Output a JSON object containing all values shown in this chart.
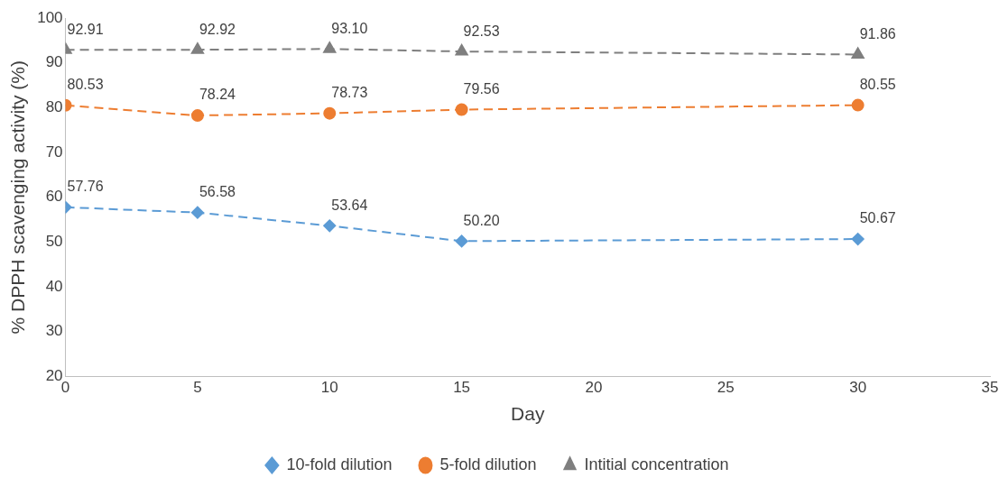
{
  "chart_data": {
    "type": "line",
    "xlabel": "Day",
    "ylabel": "% DPPH scavenging activity (%)",
    "x": [
      0,
      5,
      10,
      15,
      30
    ],
    "xlim": [
      0,
      35
    ],
    "xticks": [
      0,
      5,
      10,
      15,
      20,
      25,
      30,
      35
    ],
    "ylim": [
      20,
      100
    ],
    "yticks": [
      20,
      30,
      40,
      50,
      60,
      70,
      80,
      90,
      100
    ],
    "grid": false,
    "legend": "bottom",
    "line_style": "dashed",
    "series": [
      {
        "name": "10-fold dilution",
        "color": "#5b9bd5",
        "marker": "diamond",
        "values": [
          57.76,
          56.58,
          53.64,
          50.2,
          50.67
        ],
        "value_labels": [
          "57.76",
          "56.58",
          "53.64",
          "50.20",
          "50.67"
        ]
      },
      {
        "name": "5-fold dilution",
        "color": "#ed7d31",
        "marker": "circle",
        "values": [
          80.53,
          78.24,
          78.73,
          79.56,
          80.55
        ],
        "value_labels": [
          "80.53",
          "78.24",
          "78.73",
          "79.56",
          "80.55"
        ]
      },
      {
        "name": "Intitial concentration",
        "color": "#7f7f7f",
        "marker": "triangle",
        "values": [
          92.91,
          92.92,
          93.1,
          92.53,
          91.86
        ],
        "value_labels": [
          "92.91",
          "92.92",
          "93.10",
          "92.53",
          "91.86"
        ]
      }
    ]
  }
}
